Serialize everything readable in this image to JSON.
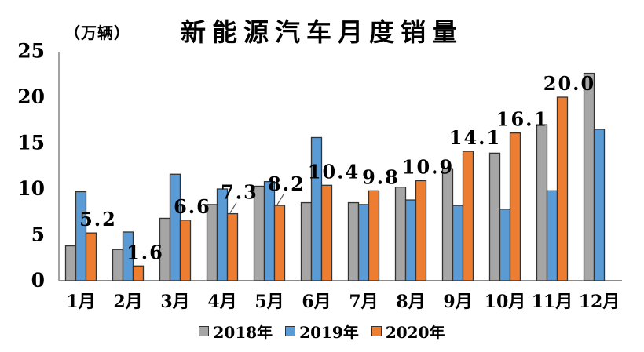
{
  "chart_data": {
    "type": "bar",
    "title": "新能源汽车月度销量",
    "unit": "（万辆）",
    "categories": [
      "1月",
      "2月",
      "3月",
      "4月",
      "5月",
      "6月",
      "7月",
      "8月",
      "9月",
      "10月",
      "11月",
      "12月"
    ],
    "series": [
      {
        "name": "2018年",
        "color": "#A6A6A6",
        "values": [
          3.8,
          3.4,
          6.8,
          8.3,
          10.3,
          8.5,
          8.5,
          10.2,
          12.2,
          13.9,
          17.0,
          22.6
        ]
      },
      {
        "name": "2019年",
        "color": "#5B9BD5",
        "values": [
          9.7,
          5.3,
          11.6,
          10.0,
          10.8,
          15.6,
          8.3,
          8.8,
          8.2,
          7.8,
          9.8,
          16.5
        ]
      },
      {
        "name": "2020年",
        "color": "#ED7D31",
        "values": [
          5.2,
          1.6,
          6.6,
          7.3,
          8.2,
          10.4,
          9.8,
          10.9,
          14.1,
          16.1,
          20.0,
          null
        ],
        "data_labels": [
          "5.2",
          "1.6",
          "6.6",
          "7.3",
          "8.2",
          "10.4",
          "9.8",
          "10.9",
          "14.1",
          "16.1",
          "20.0",
          ""
        ],
        "label_leader_categories": [
          "4月",
          "5月"
        ]
      }
    ],
    "ylim": [
      0,
      25
    ],
    "yticks": [
      0,
      5,
      10,
      15,
      20,
      25
    ],
    "grid": false,
    "legend_position": "bottom",
    "bar_border_color": "#333333",
    "axis_color": "#8C8C8C",
    "leader_line_color": "#595959",
    "text_color": "#000000"
  }
}
